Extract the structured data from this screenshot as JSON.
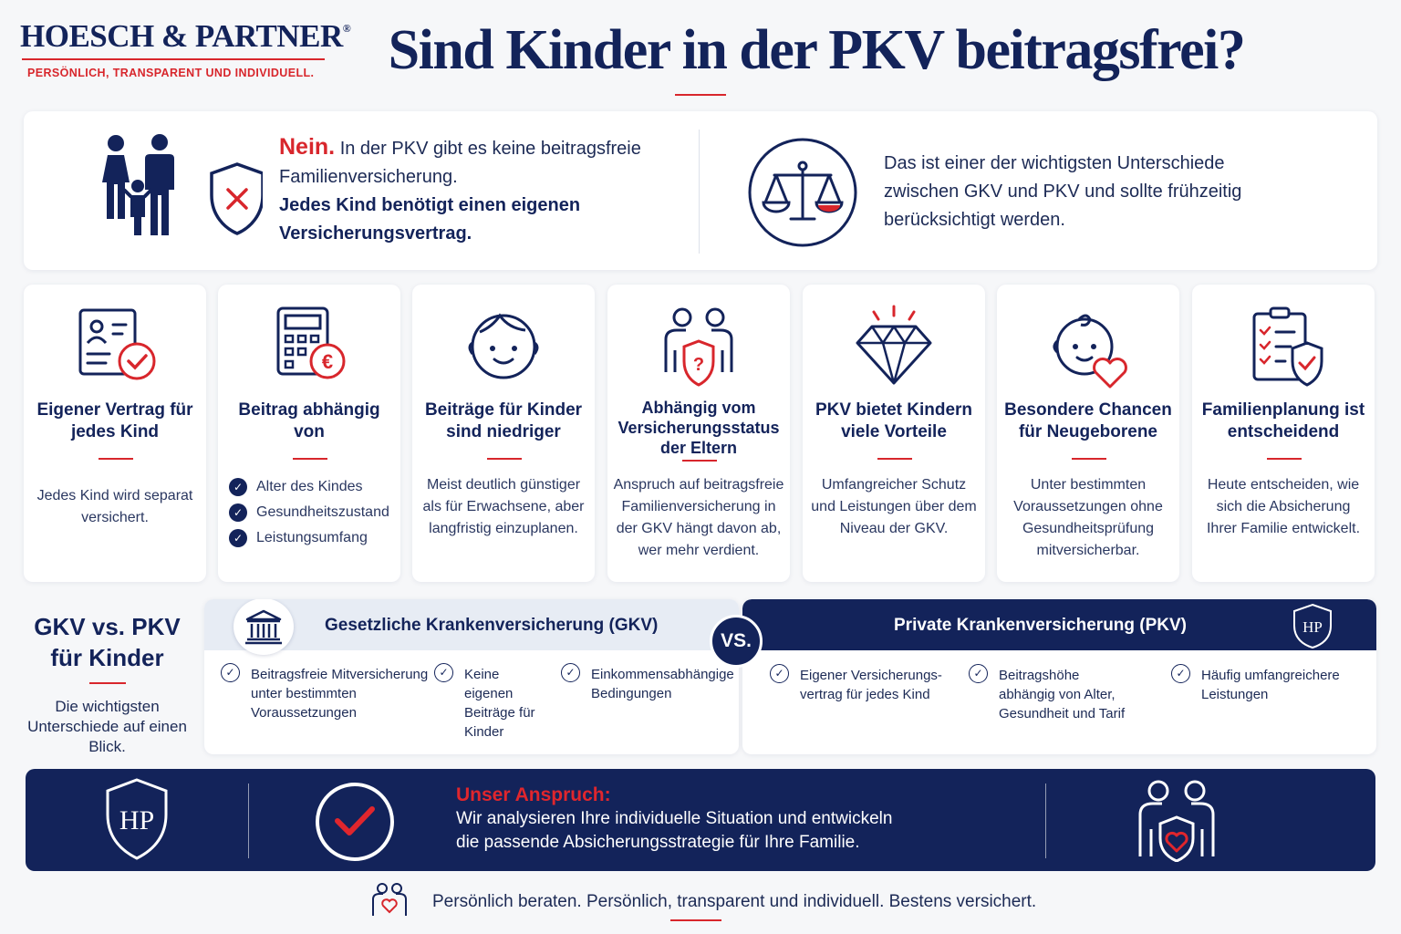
{
  "brand": {
    "name": "HOESCH & PARTNER",
    "registered": "®",
    "tagline": "PERSÖNLICH, TRANSPARENT UND INDIVIDUELL.",
    "colors": {
      "navy": "#13235a",
      "red": "#d8262c"
    }
  },
  "title": "Sind Kinder in der PKV beitragsfrei?",
  "intro": {
    "nein": "Nein.",
    "text": "In der PKV gibt es keine beitragsfreie Familienversicherung.",
    "bold": "Jedes Kind benötigt einen eigenen Versicherungsvertrag.",
    "difference": "Das ist einer der wichtigsten Unterschiede zwischen GKV und PKV und sollte frühzeitig berücksichtigt werden."
  },
  "features": [
    {
      "icon": "contract-check-icon",
      "title": "Eigener Vertrag für jedes Kind",
      "desc": "Jedes Kind wird separat versichert."
    },
    {
      "icon": "calculator-euro-icon",
      "title": "Beitrag abhängig von",
      "list": [
        "Alter des Kindes",
        "Gesundheitszustand",
        "Leistungsumfang"
      ]
    },
    {
      "icon": "child-face-icon",
      "title": "Beiträge für Kinder sind niedriger",
      "desc": "Meist deutlich günstiger als für Erwachsene, aber langfristig einzuplanen."
    },
    {
      "icon": "parents-shield-question-icon",
      "title": "Abhängig vom Versicherungsstatus der Eltern",
      "desc": "Anspruch auf beitragsfreie Familienversicherung in der GKV hängt davon ab, wer mehr verdient."
    },
    {
      "icon": "diamond-icon",
      "title": "PKV bietet Kindern viele Vorteile",
      "desc": "Umfangreicher Schutz und Leistungen über dem Niveau der GKV."
    },
    {
      "icon": "baby-heart-icon",
      "title": "Besondere Chancen für Neugeborene",
      "desc": "Unter bestimmten Voraussetzungen ohne Gesundheitsprüfung mitversicherbar."
    },
    {
      "icon": "clipboard-shield-icon",
      "title": "Familienplanung ist entscheidend",
      "desc": "Heute entscheiden, wie sich die Absicherung Ihrer Familie entwickelt."
    }
  ],
  "comparison": {
    "heading": "GKV vs. PKV für Kinder",
    "subheading": "Die wichtigsten Unterschiede auf einen Blick.",
    "vs": "VS.",
    "gkv": {
      "title": "Gesetzliche Krankenversicherung (GKV)",
      "points": [
        "Beitragsfreie Mitversicherung unter bestimmten Voraussetzungen",
        "Keine eigenen Beiträge für Kinder",
        "Einkommensabhängige Bedingungen"
      ]
    },
    "pkv": {
      "title": "Private Krankenversicherung (PKV)",
      "badge": "HP",
      "points": [
        "Eigener Versicherungs-vertrag für jedes Kind",
        "Beitragshöhe abhängig von Alter, Gesundheit und Tarif",
        "Häufig umfangreichere Leistungen"
      ]
    }
  },
  "claim": {
    "badge": "HP",
    "title": "Unser Anspruch:",
    "line1": "Wir analysieren Ihre individuelle Situation und entwickeln",
    "line2": "die passende Absicherungsstrategie für Ihre Familie."
  },
  "footer": "Persönlich beraten. Persönlich, transparent und individuell. Bestens versichert."
}
